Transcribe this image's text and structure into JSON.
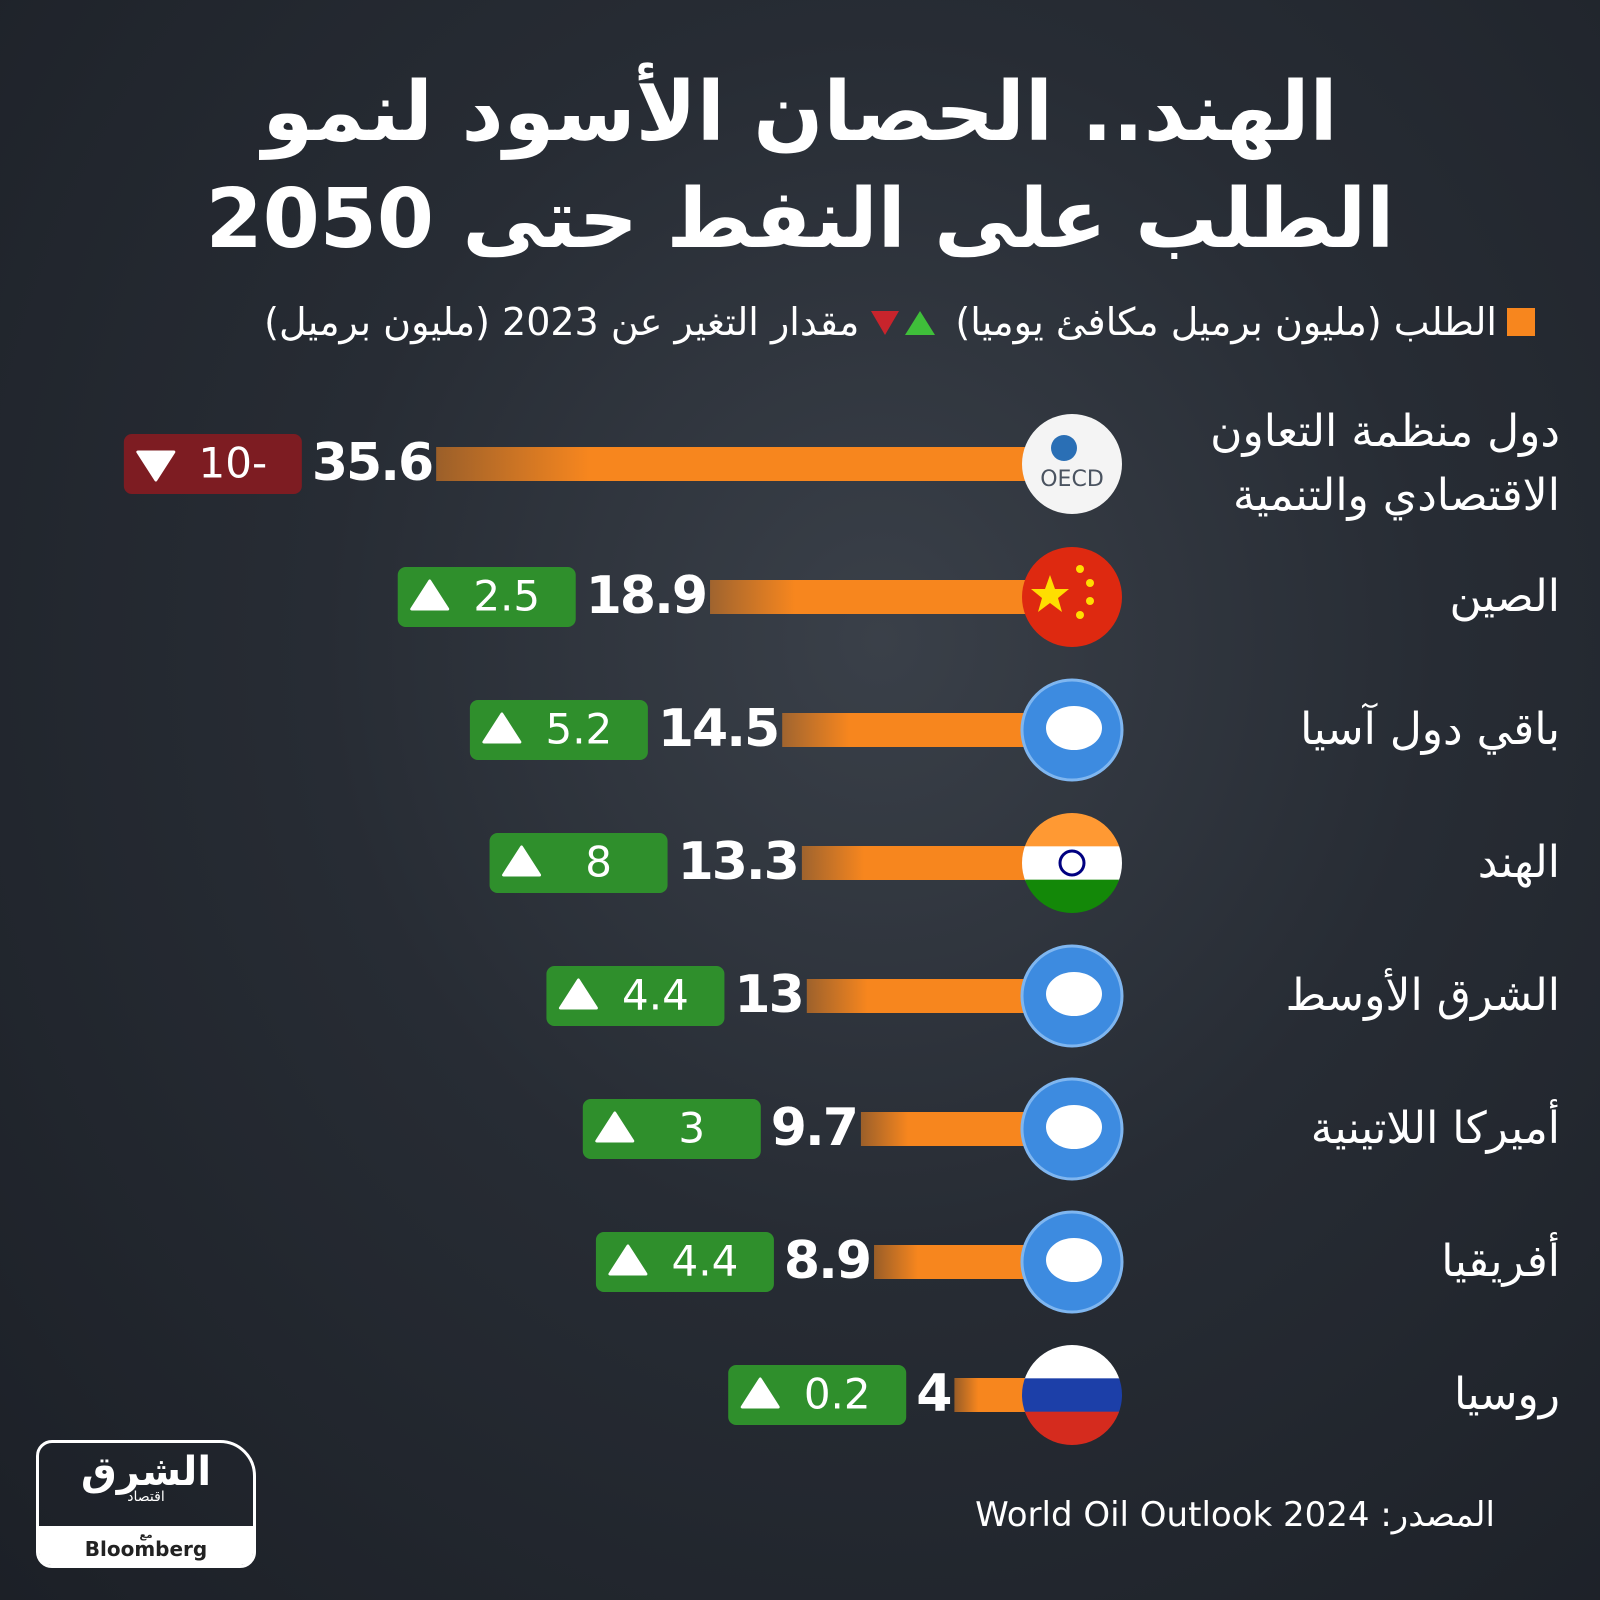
{
  "chart_data": {
    "type": "bar",
    "title": "الهند.. الحصان الأسود لنمو الطلب على النفط حتى 2050",
    "categories": [
      "دول منظمة التعاون الاقتصادي والتنمية",
      "الصين",
      "باقي دول آسيا",
      "الهند",
      "الشرق الأوسط",
      "أميركا اللاتينية",
      "أفريقيا",
      "روسيا"
    ],
    "series": [
      {
        "name": "الطلب (مليون برميل مكافئ يوميا)",
        "color": "#f7861e",
        "values": [
          35.6,
          18.9,
          14.5,
          13.3,
          13,
          9.7,
          8.9,
          4
        ]
      },
      {
        "name": "مقدار التغير عن 2023 (مليون برميل)",
        "colors": {
          "up": "#2f8f2c",
          "down": "#7d1c22"
        },
        "values": [
          -10,
          2.5,
          5.2,
          8,
          4.4,
          3,
          4.4,
          0.2
        ],
        "value_labels": [
          "10-",
          "2.5",
          "5.2",
          "8",
          "4.4",
          "3",
          "4.4",
          "0.2"
        ]
      }
    ],
    "oecd_logo_text": "OECD",
    "source": "المصدر: World Oil Outlook 2024"
  },
  "logo": {
    "name": "الشرق",
    "sub": "اقتصاد",
    "with": "مع",
    "partner": "Bloomberg"
  }
}
